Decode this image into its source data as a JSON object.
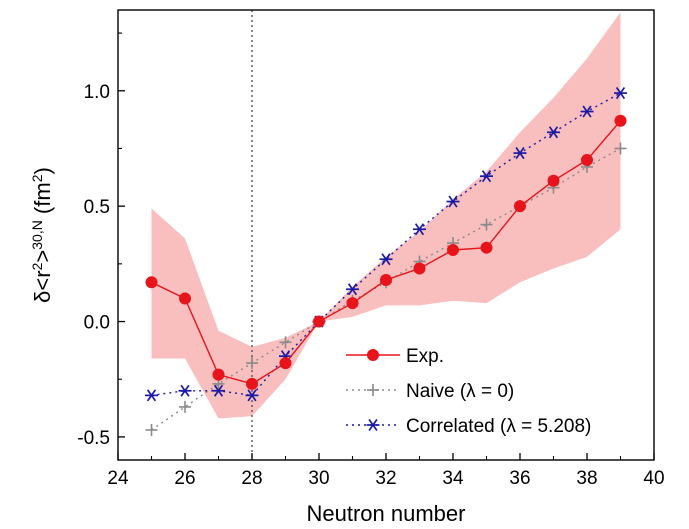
{
  "chart_data": {
    "type": "line",
    "xlabel": "Neutron number",
    "ylabel_parts": [
      "δ<r",
      "2",
      ">",
      "30,N",
      " (fm",
      "2",
      ")"
    ],
    "xlim": [
      24,
      40
    ],
    "ylim": [
      -0.6,
      1.35
    ],
    "xticks": [
      24,
      26,
      28,
      30,
      32,
      34,
      36,
      38,
      40
    ],
    "yticks": [
      -0.5,
      0.0,
      0.5,
      1.0
    ],
    "ytick_labels": [
      "-0.5",
      "0.0",
      "0.5",
      "1.0"
    ],
    "vline_x": 28,
    "band": {
      "color": "#f7a8a8",
      "x": [
        25,
        26,
        27,
        28,
        29,
        30,
        31,
        32,
        33,
        34,
        35,
        36,
        37,
        38,
        39
      ],
      "upper": [
        0.49,
        0.36,
        -0.04,
        -0.11,
        -0.07,
        0.0,
        0.15,
        0.28,
        0.39,
        0.53,
        0.65,
        0.82,
        0.97,
        1.14,
        1.34
      ],
      "lower": [
        -0.16,
        -0.16,
        -0.42,
        -0.41,
        -0.25,
        0.0,
        0.02,
        0.07,
        0.07,
        0.09,
        0.08,
        0.17,
        0.23,
        0.28,
        0.4
      ]
    },
    "series": [
      {
        "name": "Exp.",
        "color": "#e8141b",
        "marker": "circle",
        "line": "solid",
        "x": [
          25,
          26,
          27,
          28,
          29,
          30,
          31,
          32,
          33,
          34,
          35,
          36,
          37,
          38,
          39
        ],
        "values": [
          0.17,
          0.1,
          -0.23,
          -0.27,
          -0.18,
          0.0,
          0.08,
          0.18,
          0.23,
          0.31,
          0.32,
          0.5,
          0.61,
          0.7,
          0.87
        ]
      },
      {
        "name": "Naive (λ = 0)",
        "color": "#8a8a8a",
        "marker": "plus",
        "line": "dotted",
        "x": [
          25,
          26,
          27,
          28,
          29,
          30,
          31,
          32,
          33,
          34,
          35,
          36,
          37,
          38,
          39
        ],
        "values": [
          -0.47,
          -0.37,
          -0.27,
          -0.18,
          -0.09,
          0.0,
          0.09,
          0.17,
          0.26,
          0.34,
          0.42,
          0.5,
          0.58,
          0.67,
          0.75
        ]
      },
      {
        "name": "Correlated (λ = 5.208)",
        "color": "#1a1aa6",
        "marker": "star",
        "line": "dotted",
        "x": [
          25,
          26,
          27,
          28,
          29,
          30,
          31,
          32,
          33,
          34,
          35,
          36,
          37,
          38,
          39
        ],
        "values": [
          -0.32,
          -0.3,
          -0.3,
          -0.32,
          -0.15,
          0.0,
          0.14,
          0.27,
          0.4,
          0.52,
          0.63,
          0.73,
          0.82,
          0.91,
          0.99
        ]
      }
    ],
    "legend_position": "bottom-right",
    "grid": false
  }
}
